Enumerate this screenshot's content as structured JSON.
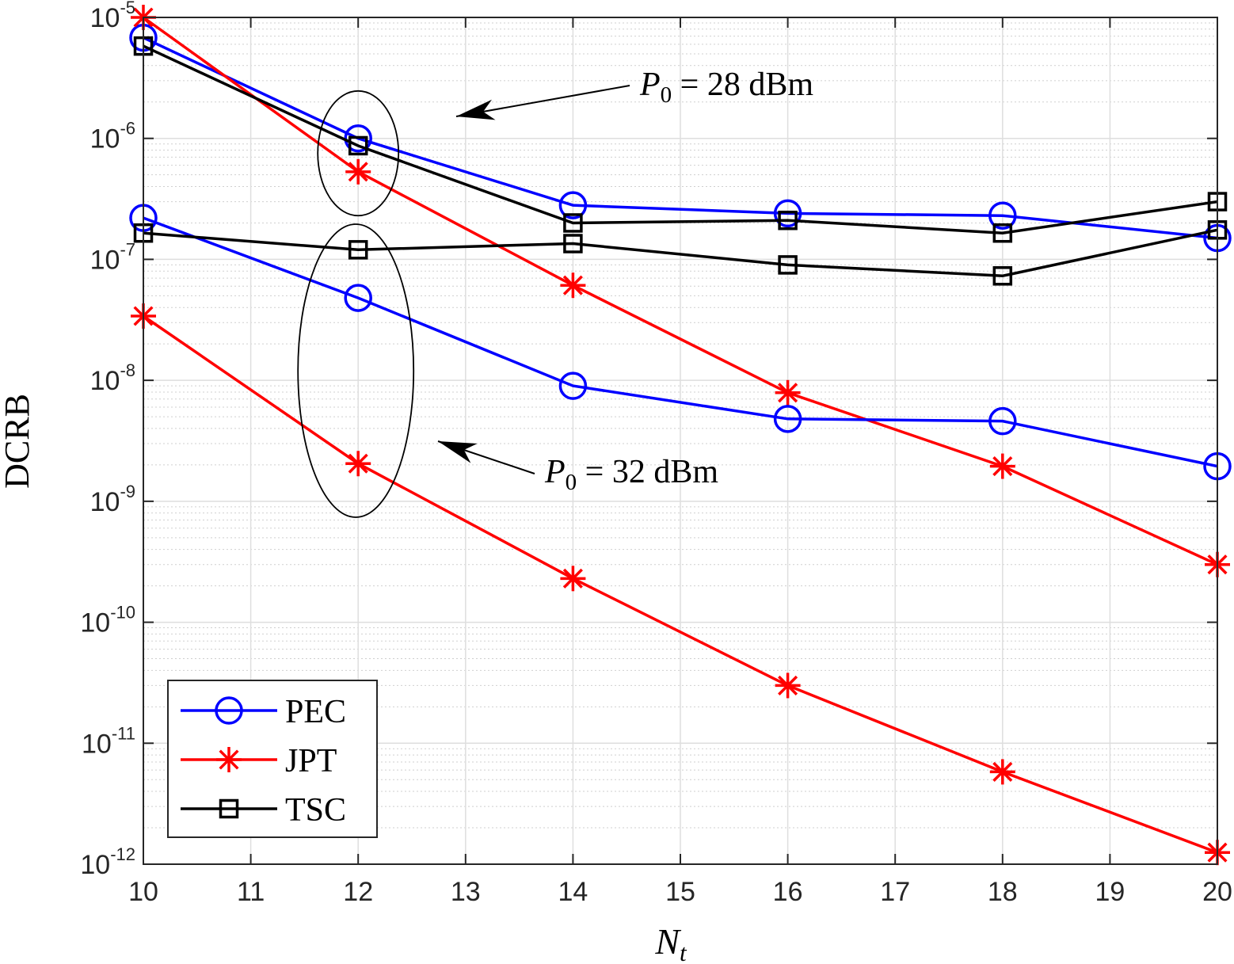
{
  "chart_data": {
    "type": "line",
    "title": "",
    "xlabel": {
      "base": "N",
      "sub": "t"
    },
    "ylabel": "DCRB",
    "yscale": "log",
    "x": [
      10,
      12,
      14,
      16,
      18,
      20
    ],
    "xlim": [
      10,
      20
    ],
    "ylim": [
      1e-12,
      1e-05
    ],
    "xticks": [
      "10",
      "11",
      "12",
      "13",
      "14",
      "15",
      "16",
      "17",
      "18",
      "19",
      "20"
    ],
    "yticks": [
      {
        "base": "10",
        "exp": "-12"
      },
      {
        "base": "10",
        "exp": "-11"
      },
      {
        "base": "10",
        "exp": "-10"
      },
      {
        "base": "10",
        "exp": "-9"
      },
      {
        "base": "10",
        "exp": "-8"
      },
      {
        "base": "10",
        "exp": "-7"
      },
      {
        "base": "10",
        "exp": "-6"
      },
      {
        "base": "10",
        "exp": "-5"
      }
    ],
    "grid": true,
    "legend_position": "bottom-left",
    "legend": [
      {
        "name": "PEC",
        "color": "#0000ff",
        "marker": "circle"
      },
      {
        "name": "JPT",
        "color": "#ff0000",
        "marker": "asterisk"
      },
      {
        "name": "TSC",
        "color": "#000000",
        "marker": "square"
      }
    ],
    "series": [
      {
        "name": "PEC",
        "group": "P0 = 28 dBm",
        "color": "#0000ff",
        "marker": "circle",
        "values": [
          6.8e-06,
          1e-06,
          2.8e-07,
          2.4e-07,
          2.3e-07,
          1.5e-07
        ]
      },
      {
        "name": "JPT",
        "group": "P0 = 28 dBm",
        "color": "#ff0000",
        "marker": "asterisk",
        "values": [
          1e-05,
          5.3e-07,
          6.1e-08,
          7.9e-09,
          1.95e-09,
          3e-10
        ]
      },
      {
        "name": "TSC",
        "group": "P0 = 28 dBm",
        "color": "#000000",
        "marker": "square",
        "values": [
          5.8e-06,
          8.7e-07,
          2e-07,
          2.1e-07,
          1.65e-07,
          3e-07
        ]
      },
      {
        "name": "PEC",
        "group": "P0 = 32 dBm",
        "color": "#0000ff",
        "marker": "circle",
        "values": [
          2.2e-07,
          4.8e-08,
          9e-09,
          4.8e-09,
          4.6e-09,
          1.95e-09
        ]
      },
      {
        "name": "JPT",
        "group": "P0 = 32 dBm",
        "color": "#ff0000",
        "marker": "asterisk",
        "values": [
          3.4e-08,
          2.05e-09,
          2.3e-10,
          3e-11,
          5.8e-12,
          1.25e-12
        ]
      },
      {
        "name": "TSC",
        "group": "P0 = 32 dBm",
        "color": "#000000",
        "marker": "square",
        "values": [
          1.65e-07,
          1.2e-07,
          1.35e-07,
          9e-08,
          7.3e-08,
          1.75e-07
        ]
      }
    ],
    "annotations": [
      {
        "id": "p28",
        "base": "P",
        "sub": "0",
        "rest": " = 28 dBm",
        "target_x": 12,
        "target_y": 9e-07
      },
      {
        "id": "p32",
        "base": "P",
        "sub": "0",
        "rest": " = 32 dBm",
        "target_x": 12,
        "target_y": 1.4e-08
      }
    ]
  }
}
